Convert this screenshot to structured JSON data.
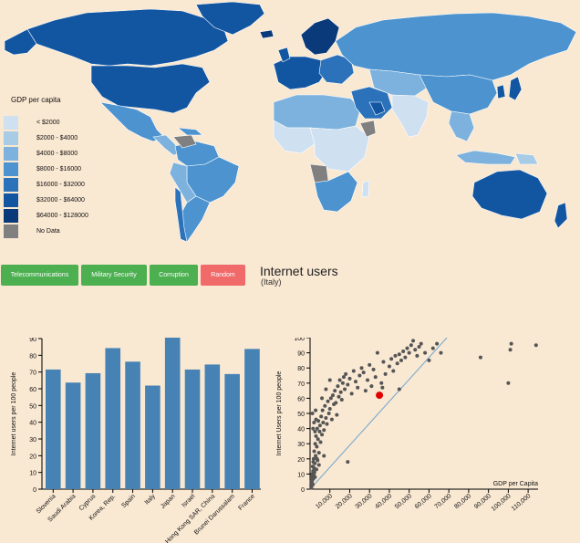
{
  "legend": {
    "title": "GDP per capita",
    "items": [
      {
        "label": "< $2000",
        "color": "#cfe0f1"
      },
      {
        "label": "$2000 - $4000",
        "color": "#a8cbe6"
      },
      {
        "label": "$4000 - $8000",
        "color": "#7cb2dd"
      },
      {
        "label": "$8000 - $16000",
        "color": "#4c93cf"
      },
      {
        "label": "$16000 - $32000",
        "color": "#2b72bb"
      },
      {
        "label": "$32000 - $64000",
        "color": "#1256a1"
      },
      {
        "label": "$64000 - $128000",
        "color": "#0a3a7a"
      },
      {
        "label": "No Data",
        "color": "#808080"
      }
    ]
  },
  "buttons": {
    "telecom": "Telecommunications",
    "military": "Military Security",
    "corruption": "Corruption",
    "random": "Random"
  },
  "heading": {
    "title": "Internet users",
    "subtitle": "(Italy)"
  },
  "chart_data": [
    {
      "type": "bar",
      "ylabel": "Internet users per 100 people",
      "ylim": [
        0,
        90
      ],
      "yticks": [
        0,
        10,
        20,
        30,
        40,
        50,
        60,
        70,
        80,
        90
      ],
      "color": "#4682b4",
      "categories": [
        "Slovenia",
        "Saudi Arabia",
        "Cyprus",
        "Korea, Rep.",
        "Spain",
        "Italy",
        "Japan",
        "Israel",
        "Hong Kong SAR, China",
        "Brunei Darussalam",
        "France"
      ],
      "values": [
        71.5,
        63.7,
        69.3,
        84.3,
        76.2,
        61.9,
        90.6,
        71.5,
        74.5,
        68.8,
        83.8
      ]
    },
    {
      "type": "scatter",
      "xlabel": "GDP per Capita",
      "ylabel": "Internet Users per 100 people",
      "xlim": [
        0,
        115000
      ],
      "ylim": [
        0,
        100
      ],
      "xticks": [
        10000,
        20000,
        30000,
        40000,
        50000,
        60000,
        70000,
        80000,
        90000,
        100000,
        110000
      ],
      "xtick_labels": [
        "10,000",
        "20,000",
        "30,000",
        "40,000",
        "50,000",
        "60,000",
        "70,000",
        "80,000",
        "90,000",
        "100,000",
        "110,000"
      ],
      "yticks": [
        0,
        10,
        20,
        30,
        40,
        50,
        60,
        70,
        80,
        90,
        100
      ],
      "highlight": {
        "label": "Italy",
        "x": 35000,
        "y": 62,
        "color": "#e00000"
      },
      "trendline": [
        [
          0,
          0
        ],
        [
          69000,
          100
        ]
      ],
      "points": [
        [
          500,
          2
        ],
        [
          600,
          5
        ],
        [
          700,
          1
        ],
        [
          800,
          3
        ],
        [
          900,
          8
        ],
        [
          1000,
          4
        ],
        [
          1100,
          10
        ],
        [
          1200,
          6
        ],
        [
          1300,
          15
        ],
        [
          1400,
          3
        ],
        [
          1500,
          12
        ],
        [
          1600,
          18
        ],
        [
          1700,
          7
        ],
        [
          1800,
          20
        ],
        [
          1900,
          9
        ],
        [
          2000,
          14
        ],
        [
          2100,
          25
        ],
        [
          2200,
          11
        ],
        [
          2400,
          17
        ],
        [
          2600,
          30
        ],
        [
          2800,
          22
        ],
        [
          3000,
          35
        ],
        [
          3200,
          13
        ],
        [
          3400,
          28
        ],
        [
          3600,
          40
        ],
        [
          3800,
          19
        ],
        [
          4000,
          33
        ],
        [
          4200,
          45
        ],
        [
          4500,
          24
        ],
        [
          4800,
          38
        ],
        [
          5000,
          42
        ],
        [
          5300,
          31
        ],
        [
          5600,
          48
        ],
        [
          6000,
          36
        ],
        [
          6300,
          52
        ],
        [
          6600,
          44
        ],
        [
          7000,
          39
        ],
        [
          7500,
          55
        ],
        [
          8000,
          47
        ],
        [
          8500,
          43
        ],
        [
          9000,
          58
        ],
        [
          9500,
          50
        ],
        [
          10000,
          53
        ],
        [
          10500,
          60
        ],
        [
          11000,
          46
        ],
        [
          11500,
          62
        ],
        [
          12000,
          56
        ],
        [
          12500,
          65
        ],
        [
          13000,
          57
        ],
        [
          13500,
          49
        ],
        [
          14000,
          68
        ],
        [
          14500,
          61
        ],
        [
          15000,
          72
        ],
        [
          15500,
          64
        ],
        [
          16000,
          59
        ],
        [
          16500,
          70
        ],
        [
          17000,
          74
        ],
        [
          17500,
          66
        ],
        [
          18000,
          76
        ],
        [
          19000,
          69
        ],
        [
          20000,
          73
        ],
        [
          21000,
          63
        ],
        [
          22000,
          78
        ],
        [
          23000,
          71
        ],
        [
          24000,
          67
        ],
        [
          25000,
          75
        ],
        [
          26000,
          80
        ],
        [
          27000,
          77
        ],
        [
          28000,
          65
        ],
        [
          29000,
          72
        ],
        [
          30000,
          82
        ],
        [
          31000,
          68
        ],
        [
          32000,
          79
        ],
        [
          33000,
          74
        ],
        [
          34000,
          90
        ],
        [
          36000,
          70
        ],
        [
          37000,
          84
        ],
        [
          38000,
          76
        ],
        [
          40000,
          81
        ],
        [
          41000,
          86
        ],
        [
          42000,
          78
        ],
        [
          43000,
          88
        ],
        [
          44000,
          83
        ],
        [
          45000,
          89
        ],
        [
          46000,
          85
        ],
        [
          47000,
          91
        ],
        [
          48000,
          87
        ],
        [
          49000,
          93
        ],
        [
          50000,
          90
        ],
        [
          51000,
          95
        ],
        [
          52000,
          98
        ],
        [
          53000,
          92
        ],
        [
          54000,
          88
        ],
        [
          55000,
          94
        ],
        [
          56000,
          96
        ],
        [
          58000,
          90
        ],
        [
          60000,
          85
        ],
        [
          62000,
          93
        ],
        [
          64000,
          96
        ],
        [
          66000,
          90
        ],
        [
          1500,
          40
        ],
        [
          2000,
          44
        ],
        [
          2500,
          38
        ],
        [
          3000,
          46
        ],
        [
          1200,
          50
        ],
        [
          2800,
          52
        ],
        [
          6000,
          60
        ],
        [
          8000,
          66
        ],
        [
          10000,
          72
        ],
        [
          3500,
          20
        ],
        [
          4500,
          16
        ],
        [
          2500,
          8
        ],
        [
          7000,
          22
        ],
        [
          19000,
          18
        ],
        [
          36500,
          67
        ],
        [
          45000,
          66
        ],
        [
          86000,
          87
        ],
        [
          100000,
          70
        ],
        [
          101000,
          92
        ],
        [
          101500,
          96
        ],
        [
          114000,
          95
        ]
      ]
    }
  ]
}
